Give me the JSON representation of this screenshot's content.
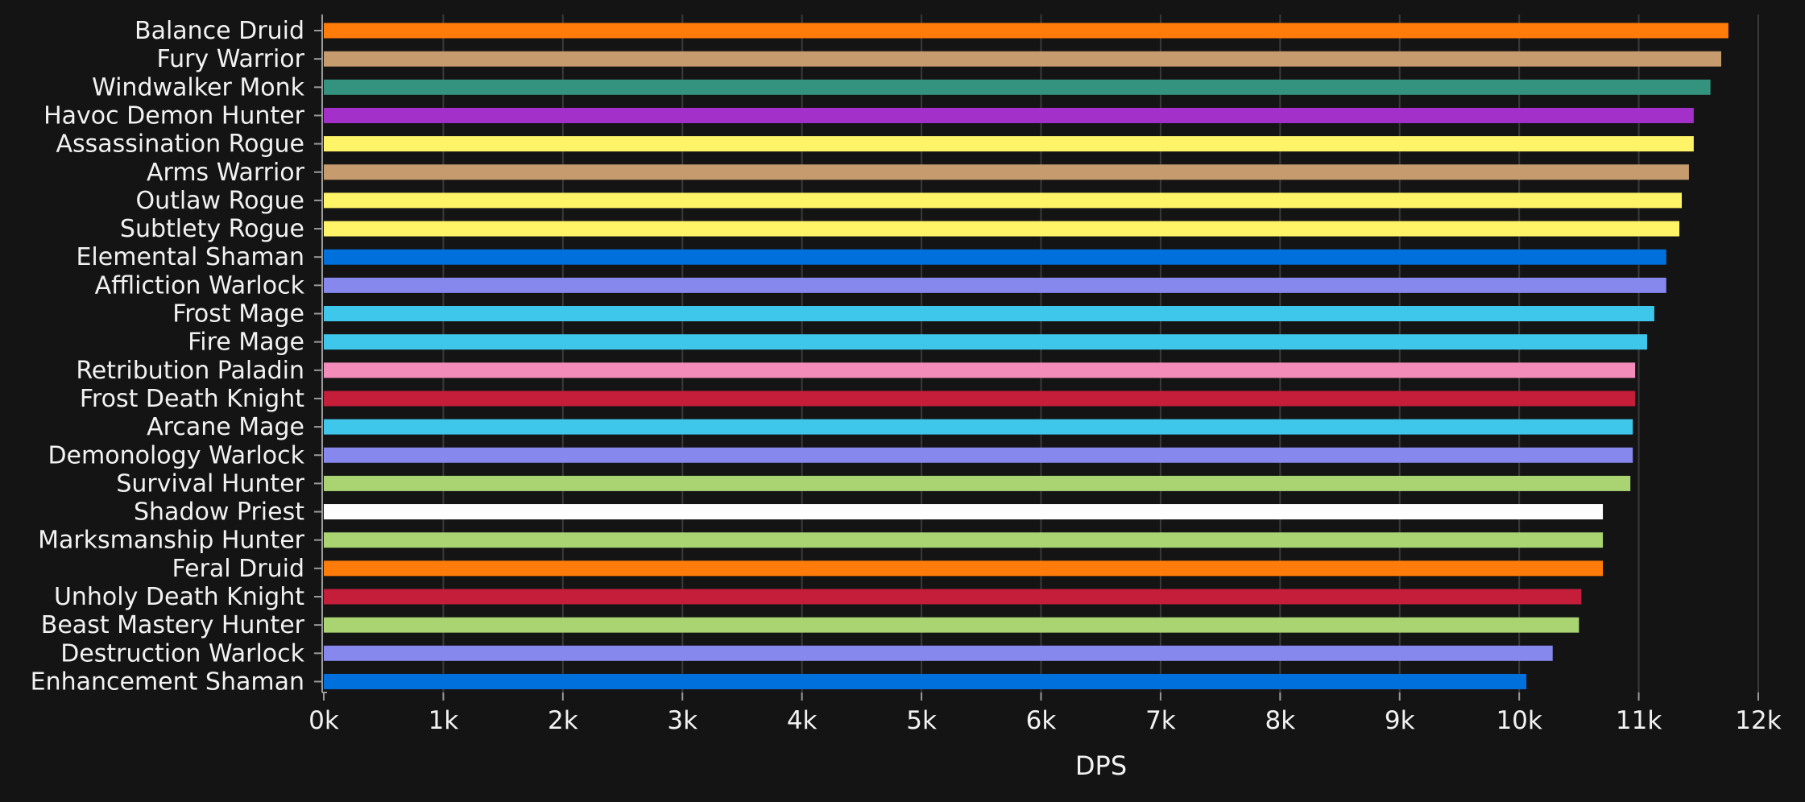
{
  "chart_data": {
    "type": "bar",
    "orientation": "horizontal",
    "xlabel": "DPS",
    "xlim": [
      0,
      12000
    ],
    "x_ticks": [
      "0k",
      "1k",
      "2k",
      "3k",
      "4k",
      "5k",
      "6k",
      "7k",
      "8k",
      "9k",
      "10k",
      "11k",
      "12k"
    ],
    "grid": true,
    "categories": [
      "Balance Druid",
      "Fury Warrior",
      "Windwalker Monk",
      "Havoc Demon Hunter",
      "Assassination Rogue",
      "Arms Warrior",
      "Outlaw Rogue",
      "Subtlety Rogue",
      "Elemental Shaman",
      "Affliction Warlock",
      "Frost Mage",
      "Fire Mage",
      "Retribution Paladin",
      "Frost Death Knight",
      "Arcane Mage",
      "Demonology Warlock",
      "Survival Hunter",
      "Shadow Priest",
      "Marksmanship Hunter",
      "Feral Druid",
      "Unholy Death Knight",
      "Beast Mastery Hunter",
      "Destruction Warlock",
      "Enhancement Shaman"
    ],
    "values": [
      11750,
      11690,
      11600,
      11460,
      11460,
      11420,
      11360,
      11340,
      11230,
      11230,
      11130,
      11070,
      10970,
      10970,
      10950,
      10950,
      10930,
      10700,
      10700,
      10700,
      10520,
      10500,
      10280,
      10060
    ],
    "colors": [
      "#ff7c0a",
      "#c69b6d",
      "#33937f",
      "#a330c9",
      "#fff468",
      "#c69b6d",
      "#fff468",
      "#fff468",
      "#0070dd",
      "#8788ee",
      "#3fc7eb",
      "#3fc7eb",
      "#f48cba",
      "#c41e3a",
      "#3fc7eb",
      "#8788ee",
      "#aad372",
      "#ffffff",
      "#aad372",
      "#ff7c0a",
      "#c41e3a",
      "#aad372",
      "#8788ee",
      "#0070dd"
    ]
  },
  "colors": {
    "background": "#141414",
    "text": "#f2f2f2",
    "grid": "#3a3a3a",
    "axis": "#9a9a9a"
  }
}
